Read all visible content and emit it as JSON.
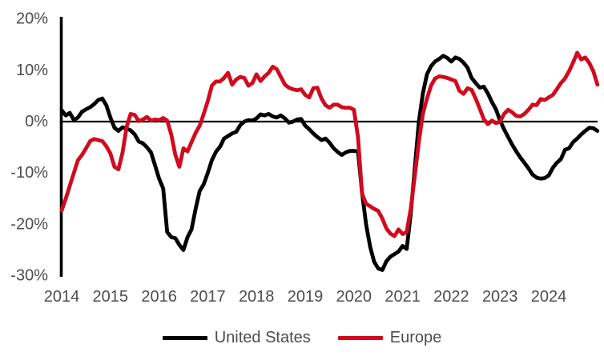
{
  "chart_data": {
    "type": "line",
    "title": "",
    "xlabel": "",
    "ylabel": "",
    "x_unit": "month",
    "x_start_year": 2014,
    "points_per_year": 12,
    "x_tick_labels": [
      "2014",
      "2015",
      "2016",
      "2017",
      "2018",
      "2019",
      "2020",
      "2021",
      "2022",
      "2023",
      "2024"
    ],
    "y_tick_labels": [
      "20%",
      "10%",
      "0%",
      "-10%",
      "-20%",
      "-30%"
    ],
    "y_ticks": [
      20,
      10,
      0,
      -10,
      -20,
      -30
    ],
    "ylim": [
      -30,
      20
    ],
    "grid": false,
    "legend_position": "bottom",
    "series": [
      {
        "name": "United States",
        "color": "#000000",
        "values": [
          2.2,
          1.2,
          1.7,
          0.3,
          0.8,
          1.9,
          2.4,
          2.8,
          3.4,
          4.2,
          4.5,
          3.2,
          0.8,
          -1.2,
          -1.8,
          -1.1,
          -1.4,
          -1.7,
          -2.5,
          -3.9,
          -4.2,
          -5.0,
          -6.0,
          -8.5,
          -11.1,
          -13.0,
          -21.5,
          -22.5,
          -22.7,
          -24.0,
          -25.0,
          -22.5,
          -21.0,
          -17.0,
          -13.5,
          -12.2,
          -10.0,
          -7.5,
          -5.9,
          -4.9,
          -3.3,
          -2.8,
          -2.3,
          -2.0,
          -0.7,
          0.0,
          0.3,
          0.2,
          0.6,
          1.4,
          1.2,
          1.5,
          1.0,
          0.8,
          1.2,
          0.6,
          -0.2,
          0.0,
          0.4,
          0.5,
          -0.8,
          -1.5,
          -2.3,
          -3.0,
          -3.6,
          -3.3,
          -4.1,
          -5.2,
          -5.9,
          -6.5,
          -6.0,
          -5.7,
          -5.7,
          -5.8,
          -13.7,
          -20.0,
          -24.4,
          -27.3,
          -28.6,
          -28.9,
          -27.2,
          -26.3,
          -25.8,
          -25.3,
          -24.2,
          -24.8,
          -18.0,
          -9.1,
          0.0,
          5.5,
          9.2,
          10.8,
          11.7,
          12.2,
          12.8,
          12.4,
          11.7,
          12.5,
          12.2,
          11.5,
          10.5,
          8.5,
          7.5,
          6.6,
          6.8,
          5.5,
          3.8,
          2.4,
          0.2,
          -1.5,
          -3.0,
          -4.5,
          -5.8,
          -7.0,
          -8.0,
          -9.1,
          -10.3,
          -10.9,
          -11.1,
          -11.0,
          -10.5,
          -9.0,
          -8.0,
          -7.3,
          -5.5,
          -5.2,
          -4.0,
          -3.3,
          -2.5,
          -1.8,
          -1.2,
          -1.3,
          -1.8
        ]
      },
      {
        "name": "Europe",
        "color": "#d10a1e",
        "values": [
          -17.3,
          -15.0,
          -12.5,
          -10.0,
          -7.5,
          -6.5,
          -5.2,
          -3.8,
          -3.4,
          -3.6,
          -3.8,
          -4.8,
          -6.2,
          -8.8,
          -9.3,
          -6.0,
          -1.0,
          1.5,
          1.3,
          0.1,
          0.4,
          0.9,
          0.2,
          0.4,
          0.3,
          0.7,
          0.2,
          -2.5,
          -6.5,
          -8.8,
          -5.2,
          -5.8,
          -4.0,
          -2.2,
          -0.8,
          1.5,
          4.0,
          7.0,
          7.8,
          7.8,
          8.5,
          9.5,
          7.2,
          8.2,
          8.7,
          8.5,
          7.0,
          7.5,
          9.2,
          7.9,
          8.8,
          9.5,
          10.7,
          10.2,
          8.7,
          7.2,
          6.6,
          6.3,
          6.1,
          6.3,
          5.2,
          4.7,
          6.5,
          6.6,
          4.5,
          3.2,
          2.7,
          3.3,
          3.3,
          2.8,
          2.7,
          2.7,
          2.3,
          -3.0,
          -14.0,
          -16.0,
          -16.5,
          -17.0,
          -17.4,
          -18.9,
          -20.8,
          -21.8,
          -22.3,
          -21.0,
          -21.9,
          -21.5,
          -17.0,
          -10.6,
          -3.9,
          1.5,
          4.5,
          7.0,
          8.4,
          8.8,
          8.7,
          8.5,
          8.2,
          7.9,
          6.0,
          5.4,
          6.5,
          6.2,
          4.5,
          2.5,
          0.5,
          -0.5,
          0.2,
          -0.3,
          0.0,
          1.5,
          2.3,
          1.8,
          1.1,
          1.0,
          1.5,
          2.3,
          3.3,
          3.2,
          4.4,
          4.2,
          4.7,
          5.2,
          6.3,
          7.5,
          8.4,
          9.8,
          11.5,
          13.4,
          12.1,
          12.5,
          11.4,
          9.8,
          7.2
        ]
      }
    ]
  },
  "colors": {
    "axis": "#000000",
    "tick_text": "#4d4d4d",
    "background": "#ffffff"
  }
}
